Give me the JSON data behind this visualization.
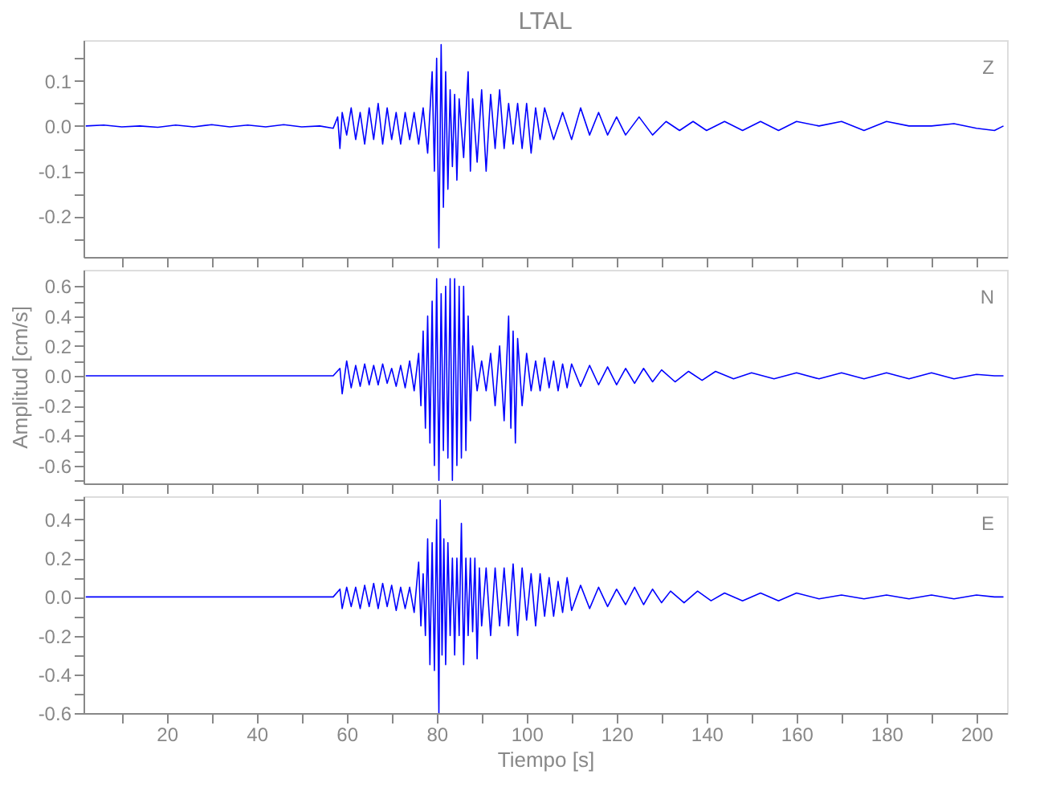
{
  "chart_data": [
    {
      "type": "line",
      "title": "LTAL",
      "annotations": [
        "Z"
      ],
      "color": "#0000ff",
      "tick_labels": "y",
      "xlim": [
        1.5,
        206.8
      ],
      "xticks": [
        {
          "value": 10,
          "label": null
        },
        20,
        {
          "value": 30,
          "label": null
        },
        40,
        {
          "value": 50,
          "label": null
        },
        60,
        {
          "value": 70,
          "label": null
        },
        80,
        {
          "value": 90,
          "label": null
        },
        100,
        {
          "value": 110,
          "label": null
        },
        120,
        {
          "value": 130,
          "label": null
        },
        140,
        {
          "value": 150,
          "label": null
        },
        160,
        {
          "value": 170,
          "label": null
        },
        180,
        {
          "value": 190,
          "label": null
        },
        200
      ],
      "ylim": [
        -0.29,
        0.19
      ],
      "yticks": [
        {
          "value": -0.25,
          "label": null
        },
        -0.2,
        {
          "value": -0.15,
          "label": null
        },
        -0.1,
        {
          "value": -0.05,
          "label": null
        },
        {
          "value": 0.0,
          "label": "0.0"
        },
        {
          "value": 0.05,
          "label": null
        },
        0.1,
        {
          "value": 0.15,
          "label": null
        }
      ],
      "x": [
        2,
        6,
        10,
        14,
        18,
        22,
        26,
        30,
        34,
        38,
        42,
        46,
        50,
        54,
        57,
        58,
        58.5,
        59,
        60,
        61,
        62,
        63,
        64,
        65,
        66,
        67,
        68,
        69,
        70,
        71,
        72,
        73,
        74,
        75,
        76,
        77,
        78,
        79,
        79.5,
        80,
        80.5,
        81,
        81.5,
        82,
        82.5,
        83,
        83.5,
        84,
        84.5,
        85,
        86,
        87,
        87.5,
        88,
        89,
        90,
        91,
        92,
        93,
        94,
        95,
        96,
        97,
        98,
        99,
        100,
        101,
        102,
        103,
        104,
        106,
        108,
        110,
        112,
        114,
        116,
        118,
        120,
        122,
        125,
        128,
        131,
        134,
        137,
        140,
        144,
        148,
        152,
        156,
        160,
        165,
        170,
        175,
        180,
        185,
        190,
        195,
        200,
        204,
        206
      ],
      "values": [
        0.0,
        0.002,
        -0.002,
        0.0,
        -0.003,
        0.002,
        -0.002,
        0.003,
        -0.002,
        0.002,
        -0.002,
        0.003,
        -0.002,
        0.0,
        -0.005,
        0.02,
        -0.05,
        0.03,
        -0.02,
        0.04,
        -0.03,
        0.03,
        -0.04,
        0.04,
        -0.03,
        0.05,
        -0.04,
        0.04,
        -0.03,
        0.03,
        -0.04,
        0.03,
        -0.03,
        0.03,
        -0.04,
        0.04,
        -0.06,
        0.12,
        -0.1,
        0.15,
        -0.27,
        0.18,
        -0.18,
        0.12,
        -0.14,
        0.08,
        -0.09,
        0.07,
        -0.12,
        0.06,
        -0.07,
        0.12,
        -0.1,
        0.06,
        -0.08,
        0.08,
        -0.1,
        0.07,
        -0.05,
        0.08,
        -0.05,
        0.05,
        -0.04,
        0.05,
        -0.05,
        0.05,
        -0.06,
        0.04,
        -0.03,
        0.04,
        -0.03,
        0.03,
        -0.03,
        0.04,
        -0.02,
        0.03,
        -0.02,
        0.02,
        -0.02,
        0.02,
        -0.02,
        0.01,
        -0.01,
        0.01,
        -0.01,
        0.01,
        -0.01,
        0.01,
        -0.01,
        0.01,
        0.0,
        0.01,
        -0.01,
        0.01,
        0.0,
        0.0,
        0.005,
        -0.005,
        -0.01,
        0.0
      ]
    },
    {
      "type": "line",
      "ylabel": "Amplitud [cm/s]",
      "annotations": [
        "N"
      ],
      "color": "#0000ff",
      "tick_labels": "y",
      "xlim": [
        1.5,
        206.8
      ],
      "xticks": [
        {
          "value": 10,
          "label": null
        },
        20,
        {
          "value": 30,
          "label": null
        },
        40,
        {
          "value": 50,
          "label": null
        },
        60,
        {
          "value": 70,
          "label": null
        },
        80,
        {
          "value": 90,
          "label": null
        },
        100,
        {
          "value": 110,
          "label": null
        },
        120,
        {
          "value": 130,
          "label": null
        },
        140,
        {
          "value": 150,
          "label": null
        },
        160,
        {
          "value": 170,
          "label": null
        },
        180,
        {
          "value": 190,
          "label": null
        },
        200
      ],
      "ylim": [
        -0.72,
        0.71
      ],
      "yticks": [
        {
          "value": -0.7,
          "label": null
        },
        -0.6,
        {
          "value": -0.5,
          "label": null
        },
        -0.4,
        {
          "value": -0.3,
          "label": null
        },
        -0.2,
        {
          "value": -0.1,
          "label": null
        },
        {
          "value": 0.0,
          "label": "0.0"
        },
        {
          "value": 0.1,
          "label": null
        },
        0.2,
        {
          "value": 0.3,
          "label": null
        },
        0.4,
        {
          "value": 0.5,
          "label": null
        },
        0.6
      ],
      "x": [
        2,
        10,
        20,
        30,
        40,
        50,
        57,
        58.5,
        59,
        60,
        61,
        62,
        63,
        64,
        65,
        66,
        67,
        68,
        69,
        70,
        71,
        72,
        73,
        74,
        75,
        76,
        76.5,
        77,
        77.5,
        78,
        78.5,
        79,
        79.5,
        80,
        80.5,
        81,
        81.5,
        82,
        82.5,
        83,
        83.5,
        84,
        84.5,
        85,
        85.5,
        86,
        86.5,
        87,
        87.5,
        88,
        89,
        90,
        91,
        92,
        93,
        94,
        95,
        96,
        96.5,
        97,
        97.5,
        98,
        99,
        100,
        101,
        102,
        103,
        104,
        105,
        106,
        107,
        108,
        109,
        110,
        112,
        114,
        116,
        118,
        120,
        122,
        124,
        126,
        128,
        130,
        133,
        136,
        139,
        142,
        146,
        150,
        155,
        160,
        165,
        170,
        175,
        180,
        185,
        190,
        195,
        200,
        204,
        206
      ],
      "values": [
        0.0,
        0.0,
        0.0,
        0.0,
        0.0,
        0.0,
        0.0,
        0.05,
        -0.12,
        0.1,
        -0.08,
        0.07,
        -0.07,
        0.08,
        -0.06,
        0.07,
        -0.06,
        0.08,
        -0.05,
        0.05,
        -0.07,
        0.07,
        -0.08,
        0.1,
        -0.1,
        0.15,
        -0.2,
        0.3,
        -0.35,
        0.4,
        -0.45,
        0.5,
        -0.6,
        0.65,
        -0.7,
        0.55,
        -0.5,
        0.6,
        -0.55,
        0.65,
        -0.7,
        0.65,
        -0.6,
        0.6,
        -0.55,
        0.6,
        -0.5,
        0.4,
        -0.3,
        0.2,
        -0.1,
        0.1,
        -0.1,
        0.15,
        -0.2,
        0.2,
        -0.3,
        0.4,
        -0.35,
        0.3,
        -0.45,
        0.25,
        -0.2,
        0.15,
        -0.1,
        0.1,
        -0.1,
        0.12,
        -0.08,
        0.1,
        -0.1,
        0.08,
        -0.08,
        0.08,
        -0.07,
        0.07,
        -0.06,
        0.06,
        -0.06,
        0.05,
        -0.05,
        0.05,
        -0.04,
        0.04,
        -0.04,
        0.03,
        -0.03,
        0.03,
        -0.02,
        0.02,
        -0.02,
        0.02,
        -0.02,
        0.02,
        -0.02,
        0.02,
        -0.02,
        0.02,
        -0.02,
        0.01,
        0.0,
        0.0
      ]
    },
    {
      "type": "line",
      "xlabel": "Tiempo [s]",
      "annotations": [
        "E"
      ],
      "color": "#0000ff",
      "xlim": [
        1.5,
        206.8
      ],
      "xticks": [
        {
          "value": 10,
          "label": null
        },
        20,
        {
          "value": 30,
          "label": null
        },
        40,
        {
          "value": 50,
          "label": null
        },
        60,
        {
          "value": 70,
          "label": null
        },
        80,
        {
          "value": 90,
          "label": null
        },
        100,
        {
          "value": 110,
          "label": null
        },
        120,
        {
          "value": 130,
          "label": null
        },
        140,
        {
          "value": 150,
          "label": null
        },
        160,
        {
          "value": 170,
          "label": null
        },
        180,
        {
          "value": 190,
          "label": null
        },
        200
      ],
      "ylim": [
        -0.6,
        0.52
      ],
      "yticks": [
        -0.6,
        {
          "value": -0.5,
          "label": null
        },
        -0.4,
        {
          "value": -0.3,
          "label": null
        },
        -0.2,
        {
          "value": -0.1,
          "label": null
        },
        {
          "value": 0.0,
          "label": "0.0"
        },
        {
          "value": 0.1,
          "label": null
        },
        0.2,
        {
          "value": 0.3,
          "label": null
        },
        0.4,
        {
          "value": 0.5,
          "label": null
        }
      ],
      "x": [
        2,
        10,
        20,
        30,
        40,
        50,
        57,
        58.5,
        59,
        60,
        61,
        62,
        63,
        64,
        65,
        66,
        67,
        68,
        69,
        70,
        71,
        72,
        73,
        74,
        75,
        76,
        76.5,
        77,
        77.5,
        78,
        78.5,
        79,
        79.5,
        80,
        80.5,
        80.8,
        81.2,
        81.6,
        82,
        82.5,
        83,
        83.5,
        84,
        84.5,
        85,
        85.5,
        86,
        86.5,
        87,
        87.5,
        88,
        88.5,
        89,
        89.5,
        90,
        91,
        92,
        93,
        94,
        95,
        96,
        97,
        98,
        99,
        100,
        101,
        102,
        103,
        104,
        105,
        106,
        107,
        108,
        109,
        110,
        112,
        114,
        116,
        118,
        120,
        122,
        124,
        126,
        128,
        130,
        132,
        135,
        138,
        141,
        144,
        148,
        152,
        156,
        160,
        165,
        170,
        175,
        180,
        185,
        190,
        195,
        200,
        204,
        206
      ],
      "values": [
        0.0,
        0.0,
        0.0,
        0.0,
        0.0,
        0.0,
        0.0,
        0.04,
        -0.06,
        0.05,
        -0.05,
        0.05,
        -0.06,
        0.06,
        -0.05,
        0.07,
        -0.06,
        0.07,
        -0.05,
        0.06,
        -0.07,
        0.05,
        -0.06,
        0.05,
        -0.08,
        0.18,
        -0.15,
        0.12,
        -0.2,
        0.3,
        -0.35,
        0.28,
        -0.38,
        0.4,
        -0.6,
        0.5,
        -0.3,
        0.3,
        -0.35,
        0.28,
        -0.2,
        0.2,
        -0.3,
        0.2,
        -0.2,
        0.38,
        -0.35,
        0.2,
        -0.2,
        0.2,
        -0.18,
        0.2,
        -0.32,
        0.15,
        -0.15,
        0.15,
        -0.2,
        0.15,
        -0.15,
        0.15,
        -0.15,
        0.17,
        -0.2,
        0.15,
        -0.12,
        0.12,
        -0.15,
        0.12,
        -0.1,
        0.1,
        -0.1,
        0.08,
        -0.08,
        0.1,
        -0.07,
        0.06,
        -0.06,
        0.05,
        -0.05,
        0.04,
        -0.04,
        0.05,
        -0.04,
        0.04,
        -0.03,
        0.03,
        -0.03,
        0.03,
        -0.02,
        0.02,
        -0.02,
        0.02,
        -0.02,
        0.02,
        -0.01,
        0.01,
        -0.01,
        0.01,
        -0.01,
        0.01,
        -0.01,
        0.01,
        0.0,
        0.0
      ]
    }
  ]
}
